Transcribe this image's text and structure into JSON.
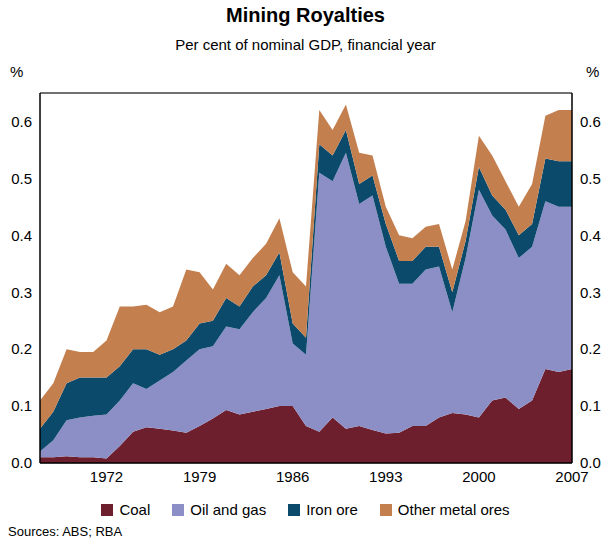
{
  "chart_data": {
    "type": "area",
    "stacked": true,
    "grid": true,
    "title": "Mining Royalties",
    "subtitle": "Per cent of nominal GDP, financial year",
    "y_label": "%",
    "source": "Sources: ABS; RBA",
    "x": [
      1967,
      1968,
      1969,
      1970,
      1971,
      1972,
      1973,
      1974,
      1975,
      1976,
      1977,
      1978,
      1979,
      1980,
      1981,
      1982,
      1983,
      1984,
      1985,
      1986,
      1987,
      1988,
      1989,
      1990,
      1991,
      1992,
      1993,
      1994,
      1995,
      1996,
      1997,
      1998,
      1999,
      2000,
      2001,
      2002,
      2003,
      2004,
      2005,
      2006,
      2007
    ],
    "xlim": [
      1967,
      2007
    ],
    "xticks": [
      1972,
      1979,
      1986,
      1993,
      2000,
      2007
    ],
    "ylim": [
      0,
      0.65
    ],
    "yticks": [
      {
        "value": 0,
        "label": "0.0"
      },
      0.1,
      0.2,
      0.3,
      0.4,
      0.5,
      0.6
    ],
    "series": [
      {
        "name": "Coal",
        "color": "#6e1f2e",
        "values": [
          0.01,
          0.01,
          0.012,
          0.01,
          0.01,
          0.008,
          0.03,
          0.055,
          0.063,
          0.06,
          0.057,
          0.053,
          0.065,
          0.078,
          0.093,
          0.085,
          0.09,
          0.095,
          0.1,
          0.1,
          0.065,
          0.055,
          0.08,
          0.06,
          0.065,
          0.058,
          0.052,
          0.053,
          0.065,
          0.065,
          0.08,
          0.088,
          0.085,
          0.08,
          0.11,
          0.115,
          0.095,
          0.11,
          0.165,
          0.16,
          0.165
        ]
      },
      {
        "name": "Oil and gas",
        "color": "#8c8fc6",
        "values": [
          0.01,
          0.03,
          0.063,
          0.07,
          0.073,
          0.077,
          0.08,
          0.085,
          0.067,
          0.085,
          0.103,
          0.127,
          0.135,
          0.127,
          0.147,
          0.15,
          0.175,
          0.195,
          0.23,
          0.11,
          0.125,
          0.455,
          0.415,
          0.485,
          0.39,
          0.412,
          0.328,
          0.262,
          0.25,
          0.275,
          0.265,
          0.177,
          0.275,
          0.4,
          0.325,
          0.295,
          0.265,
          0.27,
          0.295,
          0.29,
          0.285
        ]
      },
      {
        "name": "Iron ore",
        "color": "#0b4a6b",
        "values": [
          0.04,
          0.05,
          0.065,
          0.07,
          0.067,
          0.065,
          0.06,
          0.06,
          0.07,
          0.045,
          0.04,
          0.035,
          0.045,
          0.045,
          0.05,
          0.04,
          0.045,
          0.04,
          0.04,
          0.035,
          0.03,
          0.05,
          0.045,
          0.04,
          0.035,
          0.035,
          0.04,
          0.04,
          0.04,
          0.04,
          0.035,
          0.035,
          0.03,
          0.04,
          0.035,
          0.035,
          0.04,
          0.04,
          0.075,
          0.08,
          0.08
        ]
      },
      {
        "name": "Other metal ores",
        "color": "#c47f4f",
        "values": [
          0.05,
          0.05,
          0.06,
          0.045,
          0.045,
          0.065,
          0.105,
          0.075,
          0.078,
          0.075,
          0.075,
          0.125,
          0.09,
          0.055,
          0.06,
          0.055,
          0.05,
          0.055,
          0.06,
          0.09,
          0.09,
          0.06,
          0.045,
          0.045,
          0.055,
          0.035,
          0.03,
          0.045,
          0.04,
          0.035,
          0.04,
          0.04,
          0.035,
          0.055,
          0.07,
          0.05,
          0.05,
          0.07,
          0.075,
          0.09,
          0.09
        ]
      }
    ]
  }
}
